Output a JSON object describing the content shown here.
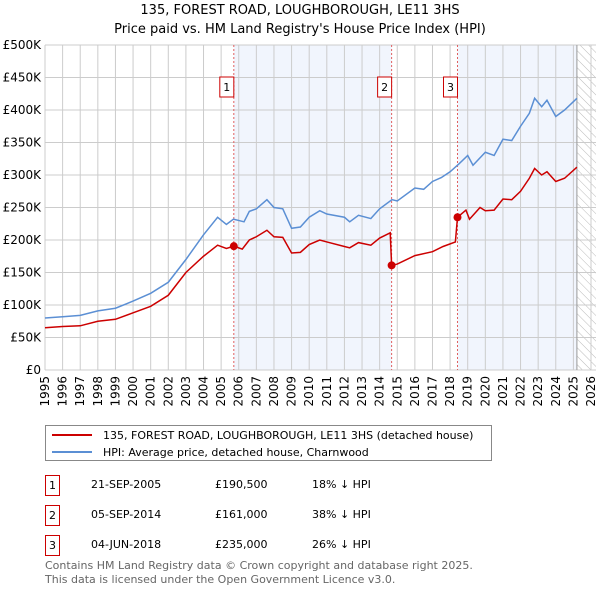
{
  "chart_data": {
    "type": "line",
    "title": "135, FOREST ROAD, LOUGHBOROUGH, LE11 3HS",
    "subtitle": "Price paid vs. HM Land Registry's House Price Index (HPI)",
    "xlim": [
      1995,
      2026
    ],
    "ylim": [
      0,
      500000
    ],
    "x_ticks": [
      "1995",
      "1996",
      "1997",
      "1998",
      "1999",
      "2000",
      "2001",
      "2002",
      "2003",
      "2004",
      "2005",
      "2006",
      "2007",
      "2008",
      "2009",
      "2010",
      "2011",
      "2012",
      "2013",
      "2014",
      "2015",
      "2016",
      "2017",
      "2018",
      "2019",
      "2020",
      "2021",
      "2022",
      "2023",
      "2024",
      "2025",
      "2026"
    ],
    "y_ticks": [
      {
        "v": 0,
        "label": "£0"
      },
      {
        "v": 50000,
        "label": "£50K"
      },
      {
        "v": 100000,
        "label": "£100K"
      },
      {
        "v": 150000,
        "label": "£150K"
      },
      {
        "v": 200000,
        "label": "£200K"
      },
      {
        "v": 250000,
        "label": "£250K"
      },
      {
        "v": 300000,
        "label": "£300K"
      },
      {
        "v": 350000,
        "label": "£350K"
      },
      {
        "v": 400000,
        "label": "£400K"
      },
      {
        "v": 450000,
        "label": "£450K"
      },
      {
        "v": 500000,
        "label": "£500K"
      }
    ],
    "grid": true,
    "forecast_start": 2025.2,
    "series": [
      {
        "name": "135, FOREST ROAD, LOUGHBOROUGH, LE11 3HS (detached house)",
        "color": "#cc0000",
        "points": [
          [
            1995,
            65000
          ],
          [
            1996,
            67000
          ],
          [
            1997,
            68000
          ],
          [
            1998,
            75000
          ],
          [
            1999,
            78000
          ],
          [
            2000,
            88000
          ],
          [
            2001,
            98000
          ],
          [
            2002,
            115000
          ],
          [
            2003,
            150000
          ],
          [
            2004,
            175000
          ],
          [
            2004.8,
            192000
          ],
          [
            2005.3,
            187000
          ],
          [
            2005.72,
            190500
          ],
          [
            2006.2,
            186000
          ],
          [
            2006.6,
            200000
          ],
          [
            2007,
            205000
          ],
          [
            2007.6,
            215000
          ],
          [
            2008,
            205000
          ],
          [
            2008.5,
            204000
          ],
          [
            2009,
            180000
          ],
          [
            2009.5,
            181000
          ],
          [
            2010,
            193000
          ],
          [
            2010.6,
            200000
          ],
          [
            2011,
            197000
          ],
          [
            2012,
            190000
          ],
          [
            2012.3,
            188000
          ],
          [
            2012.8,
            196000
          ],
          [
            2013.5,
            192000
          ],
          [
            2014,
            203000
          ],
          [
            2014.6,
            211000
          ],
          [
            2014.68,
            161000
          ],
          [
            2015,
            163000
          ],
          [
            2016,
            176000
          ],
          [
            2017,
            182000
          ],
          [
            2017.6,
            190000
          ],
          [
            2018.3,
            197000
          ],
          [
            2018.42,
            235000
          ],
          [
            2018.9,
            246000
          ],
          [
            2019.1,
            232000
          ],
          [
            2019.7,
            250000
          ],
          [
            2020,
            245000
          ],
          [
            2020.5,
            246000
          ],
          [
            2021,
            263000
          ],
          [
            2021.5,
            262000
          ],
          [
            2022,
            275000
          ],
          [
            2022.5,
            295000
          ],
          [
            2022.8,
            310000
          ],
          [
            2023.2,
            300000
          ],
          [
            2023.5,
            305000
          ],
          [
            2024,
            290000
          ],
          [
            2024.5,
            295000
          ],
          [
            2025.2,
            312000
          ]
        ]
      },
      {
        "name": "HPI: Average price, detached house, Charnwood",
        "color": "#5b8fd4",
        "points": [
          [
            1995,
            80000
          ],
          [
            1996,
            82000
          ],
          [
            1997,
            84000
          ],
          [
            1998,
            91000
          ],
          [
            1999,
            95000
          ],
          [
            2000,
            106000
          ],
          [
            2001,
            118000
          ],
          [
            2002,
            135000
          ],
          [
            2003,
            170000
          ],
          [
            2004,
            208000
          ],
          [
            2004.8,
            235000
          ],
          [
            2005.3,
            224000
          ],
          [
            2005.7,
            232000
          ],
          [
            2006.3,
            228000
          ],
          [
            2006.6,
            244000
          ],
          [
            2007,
            248000
          ],
          [
            2007.6,
            262000
          ],
          [
            2008,
            250000
          ],
          [
            2008.5,
            248000
          ],
          [
            2009,
            218000
          ],
          [
            2009.5,
            220000
          ],
          [
            2010,
            235000
          ],
          [
            2010.6,
            245000
          ],
          [
            2011,
            240000
          ],
          [
            2012,
            235000
          ],
          [
            2012.3,
            228000
          ],
          [
            2012.8,
            238000
          ],
          [
            2013.5,
            233000
          ],
          [
            2014,
            248000
          ],
          [
            2014.7,
            262000
          ],
          [
            2015,
            260000
          ],
          [
            2016,
            280000
          ],
          [
            2016.5,
            278000
          ],
          [
            2017,
            290000
          ],
          [
            2017.5,
            296000
          ],
          [
            2018,
            305000
          ],
          [
            2018.5,
            317000
          ],
          [
            2019,
            330000
          ],
          [
            2019.3,
            315000
          ],
          [
            2020,
            335000
          ],
          [
            2020.5,
            330000
          ],
          [
            2021,
            355000
          ],
          [
            2021.5,
            353000
          ],
          [
            2022,
            375000
          ],
          [
            2022.5,
            395000
          ],
          [
            2022.8,
            418000
          ],
          [
            2023.2,
            405000
          ],
          [
            2023.5,
            415000
          ],
          [
            2024,
            390000
          ],
          [
            2024.5,
            400000
          ],
          [
            2025.2,
            418000
          ]
        ]
      }
    ],
    "sales": [
      {
        "num": "1",
        "x": 2005.72,
        "value": 190500,
        "date": "21-SEP-2005",
        "price": "£190,500",
        "hpi": "18% ↓ HPI"
      },
      {
        "num": "2",
        "x": 2014.68,
        "value": 161000,
        "date": "05-SEP-2014",
        "price": "£161,000",
        "hpi": "38% ↓ HPI"
      },
      {
        "num": "3",
        "x": 2018.42,
        "value": 235000,
        "date": "04-JUN-2018",
        "price": "£235,000",
        "hpi": "26% ↓ HPI"
      }
    ]
  },
  "legend": {
    "property": "135, FOREST ROAD, LOUGHBOROUGH, LE11 3HS (detached house)",
    "hpi": "HPI: Average price, detached house, Charnwood"
  },
  "footer": {
    "line1": "Contains HM Land Registry data © Crown copyright and database right 2025.",
    "line2": "This data is licensed under the Open Government Licence v3.0."
  }
}
